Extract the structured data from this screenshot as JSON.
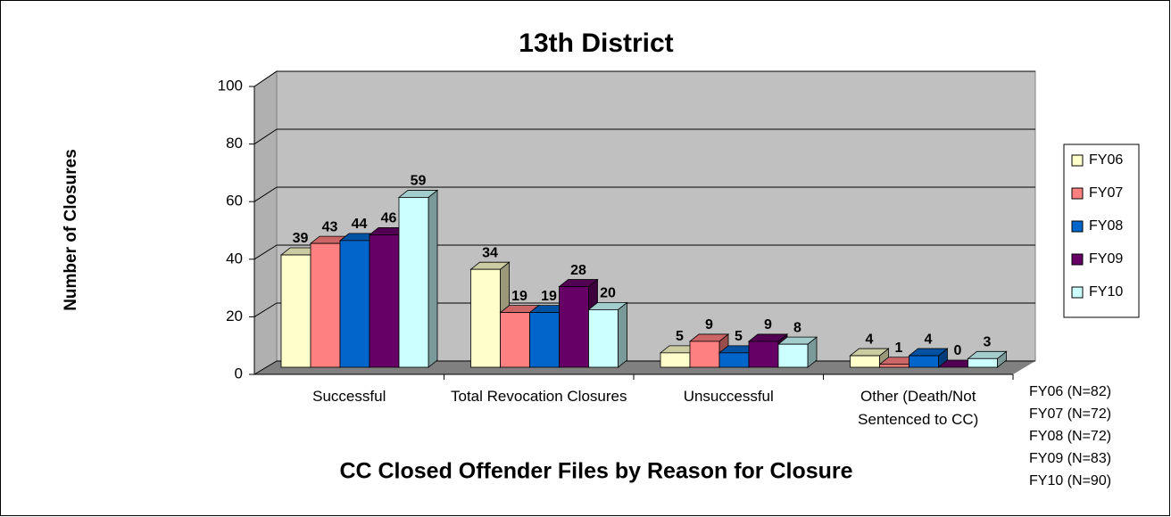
{
  "chart_data": {
    "type": "bar3d",
    "title": "13th District",
    "x_label": "CC Closed Offender Files by Reason for Closure",
    "y_label": "Number of Closures",
    "categories": [
      "Successful",
      "Total Revocation Closures",
      "Unsuccessful",
      "Other (Death/Not Sentenced to CC)"
    ],
    "series": [
      {
        "name": "FY06",
        "color": "#ffffcc",
        "values": [
          39,
          34,
          5,
          4
        ]
      },
      {
        "name": "FY07",
        "color": "#ff8080",
        "values": [
          43,
          19,
          9,
          1
        ]
      },
      {
        "name": "FY08",
        "color": "#0066cc",
        "values": [
          44,
          19,
          5,
          4
        ]
      },
      {
        "name": "FY09",
        "color": "#660066",
        "values": [
          46,
          28,
          9,
          0
        ]
      },
      {
        "name": "FY10",
        "color": "#ccffff",
        "values": [
          59,
          20,
          8,
          3
        ]
      }
    ],
    "ylim": [
      0,
      100
    ],
    "yticks": [
      0,
      20,
      40,
      60,
      80,
      100
    ],
    "grid": true,
    "legend": "right",
    "notes": [
      "FY06 (N=82)",
      "FY07 (N=72)",
      "FY08 (N=72)",
      "FY09 (N=83)",
      "FY10 (N=90)"
    ]
  }
}
